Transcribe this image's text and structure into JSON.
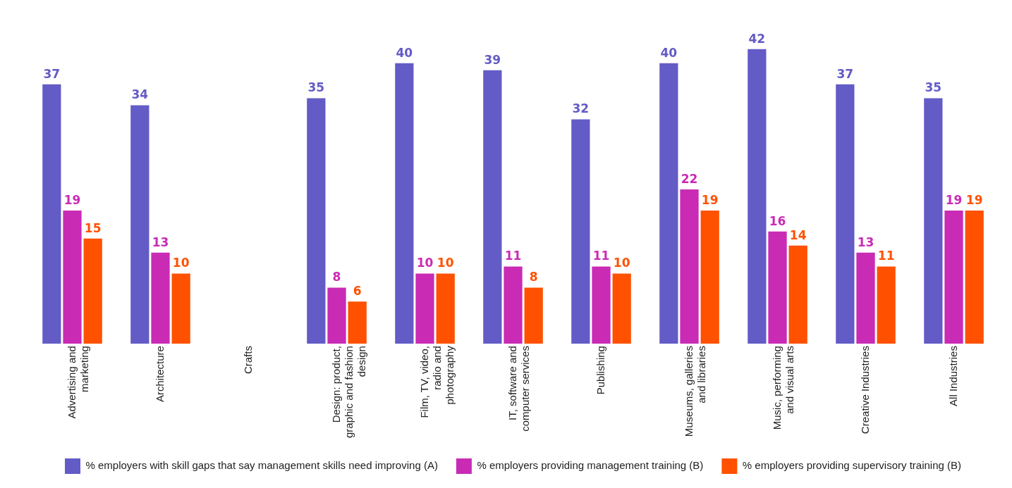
{
  "chart_data": {
    "type": "bar",
    "categories": [
      "Advertising and marketing",
      "Architecture",
      "Crafts",
      "Design: product, graphic and fashion design",
      "Film, TV, video, radio and photography",
      "IT, software and computer services",
      "Publishing",
      "Museums, galleries and libraries",
      "Music, performing and visual arts",
      "Creative Industries",
      "All Industries"
    ],
    "series": [
      {
        "name": "% employers with skill gaps that say management skills need improving (A)",
        "color": "#635bc6",
        "values": [
          37,
          34,
          null,
          35,
          40,
          39,
          32,
          40,
          42,
          37,
          35
        ]
      },
      {
        "name": "% employers providing management training (B)",
        "color": "#c92bb5",
        "values": [
          19,
          13,
          null,
          8,
          10,
          11,
          11,
          22,
          16,
          13,
          19
        ]
      },
      {
        "name": "% employers providing supervisory training (B)",
        "color": "#ff5100",
        "values": [
          15,
          10,
          null,
          6,
          10,
          8,
          10,
          19,
          14,
          11,
          19
        ]
      }
    ],
    "data_labels": true,
    "legend": "bottom",
    "grid": false,
    "tick_labels": "x"
  }
}
